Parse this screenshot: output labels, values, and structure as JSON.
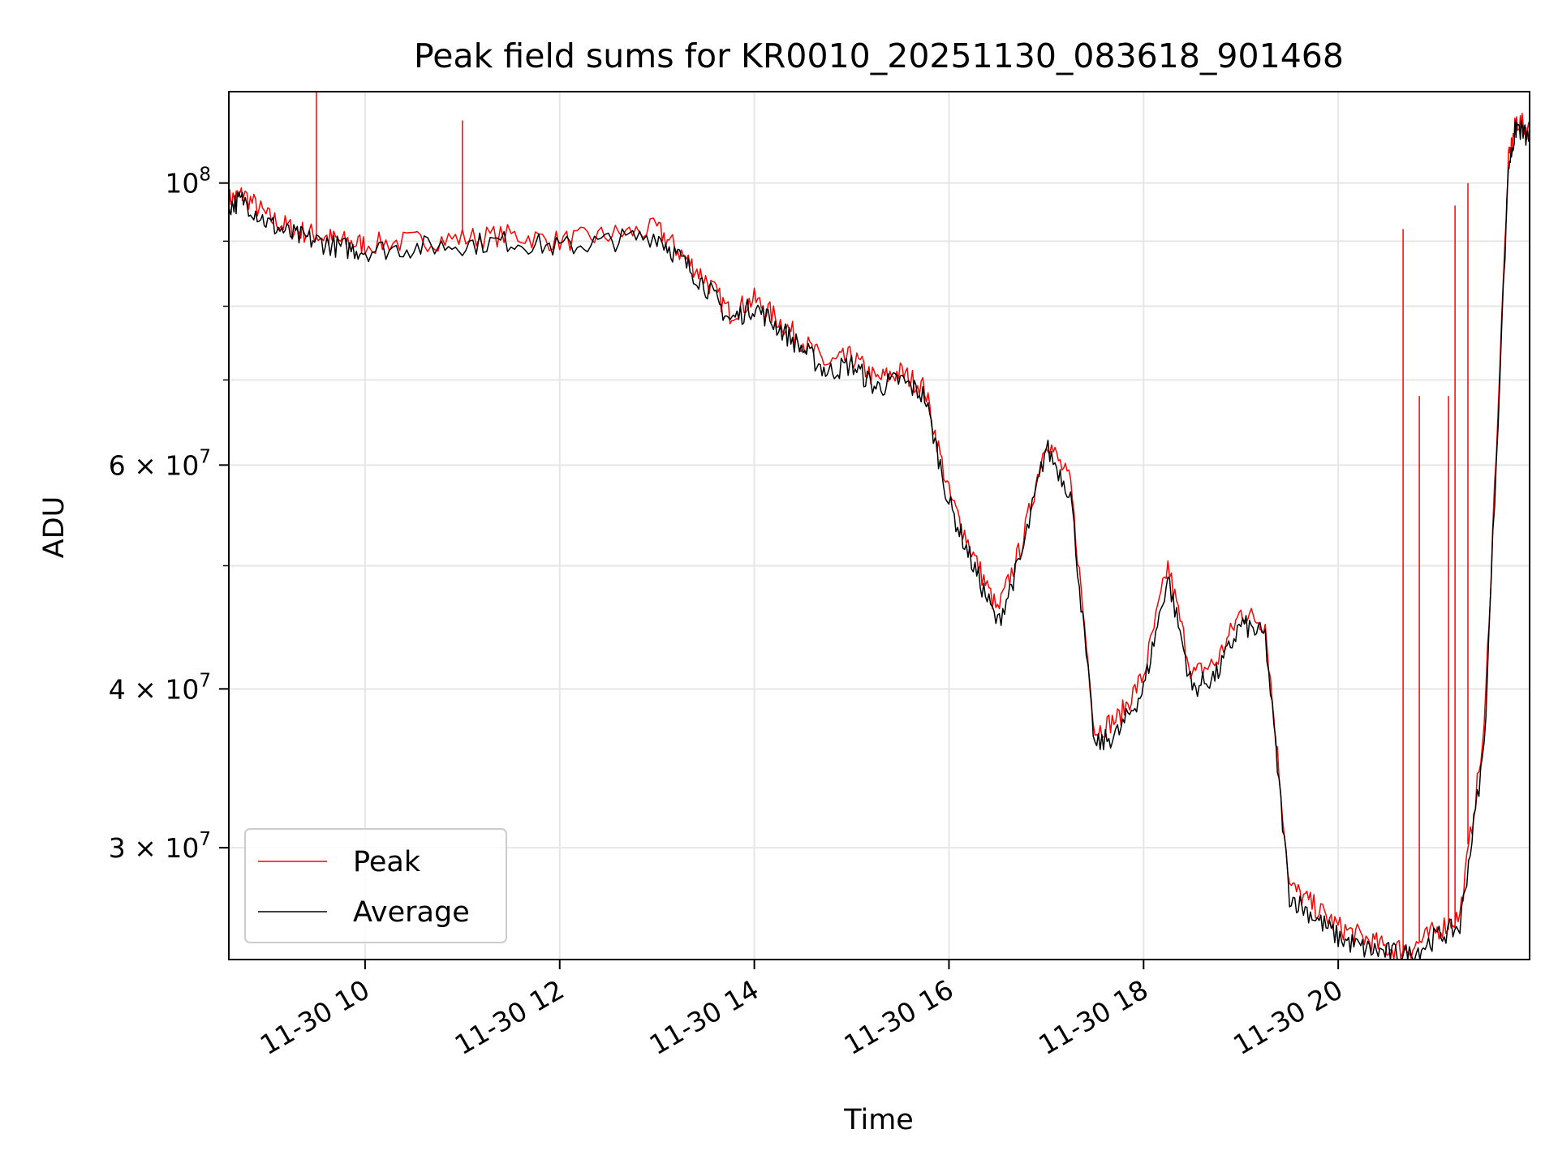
{
  "chart_data": {
    "type": "line",
    "title": "Peak field sums for KR0010_20251130_083618_901468",
    "xlabel": "Time",
    "ylabel": "ADU",
    "xlim": [
      "2025-11-30 08:36",
      "2025-11-30 21:58"
    ],
    "ylim": [
      24500000,
      118000000
    ],
    "yscale": "log",
    "grid": true,
    "legend_position": "lower left",
    "x_ticks": [
      {
        "value": "2025-11-30 10:00",
        "label": "11-30 10"
      },
      {
        "value": "2025-11-30 12:00",
        "label": "11-30 12"
      },
      {
        "value": "2025-11-30 14:00",
        "label": "11-30 14"
      },
      {
        "value": "2025-11-30 16:00",
        "label": "11-30 16"
      },
      {
        "value": "2025-11-30 18:00",
        "label": "11-30 18"
      },
      {
        "value": "2025-11-30 20:00",
        "label": "11-30 20"
      }
    ],
    "y_ticks": [
      {
        "value": 100000000,
        "base": "10",
        "exp": "8"
      },
      {
        "value": 60000000,
        "base": "6 × 10",
        "exp": "7"
      },
      {
        "value": 40000000,
        "base": "4 × 10",
        "exp": "7"
      },
      {
        "value": 30000000,
        "base": "3 × 10",
        "exp": "7"
      }
    ],
    "y_minor_ticks": [
      50000000,
      70000000,
      80000000,
      90000000
    ],
    "x": [
      "2025-11-30 08:36",
      "2025-11-30 08:45",
      "2025-11-30 09:00",
      "2025-11-30 09:15",
      "2025-11-30 09:30",
      "2025-11-30 09:45",
      "2025-11-30 10:00",
      "2025-11-30 10:30",
      "2025-11-30 11:00",
      "2025-11-30 11:30",
      "2025-11-30 12:00",
      "2025-11-30 12:30",
      "2025-11-30 13:00",
      "2025-11-30 13:15",
      "2025-11-30 13:30",
      "2025-11-30 13:45",
      "2025-11-30 14:00",
      "2025-11-30 14:15",
      "2025-11-30 14:30",
      "2025-11-30 14:45",
      "2025-11-30 15:00",
      "2025-11-30 15:15",
      "2025-11-30 15:30",
      "2025-11-30 15:45",
      "2025-11-30 16:00",
      "2025-11-30 16:15",
      "2025-11-30 16:30",
      "2025-11-30 16:45",
      "2025-11-30 17:00",
      "2025-11-30 17:15",
      "2025-11-30 17:30",
      "2025-11-30 17:45",
      "2025-11-30 18:00",
      "2025-11-30 18:15",
      "2025-11-30 18:30",
      "2025-11-30 18:45",
      "2025-11-30 19:00",
      "2025-11-30 19:15",
      "2025-11-30 19:30",
      "2025-11-30 19:45",
      "2025-11-30 20:00",
      "2025-11-30 20:15",
      "2025-11-30 20:30",
      "2025-11-30 20:45",
      "2025-11-30 21:00",
      "2025-11-30 21:15",
      "2025-11-30 21:30",
      "2025-11-30 21:45",
      "2025-11-30 21:50",
      "2025-11-30 21:58"
    ],
    "series": [
      {
        "name": "Peak",
        "color": "#ff0000",
        "values": [
          97000000,
          98000000,
          94000000,
          92000000,
          91000000,
          90000000,
          89500000,
          90000000,
          90500000,
          91000000,
          90000000,
          91000000,
          92000000,
          88000000,
          84000000,
          79000000,
          81000000,
          78000000,
          75000000,
          72000000,
          73000000,
          70000000,
          71000000,
          69000000,
          57000000,
          51000000,
          46000000,
          52000000,
          63000000,
          58000000,
          37000000,
          38000000,
          41000000,
          50000000,
          41000000,
          42000000,
          46000000,
          45000000,
          28000000,
          27000000,
          26000000,
          25500000,
          25000000,
          25000000,
          25800000,
          26500000,
          37000000,
          104000000,
          112000000,
          110000000
        ],
        "spikes": [
          {
            "x": "2025-11-30 09:30",
            "y": 118000000
          },
          {
            "x": "2025-11-30 11:00",
            "y": 112000000
          },
          {
            "x": "2025-11-30 20:40",
            "y": 92000000
          },
          {
            "x": "2025-11-30 20:50",
            "y": 68000000
          },
          {
            "x": "2025-11-30 21:08",
            "y": 68000000
          },
          {
            "x": "2025-11-30 21:12",
            "y": 96000000
          },
          {
            "x": "2025-11-30 21:20",
            "y": 100000000
          }
        ]
      },
      {
        "name": "Average",
        "color": "#000000",
        "values": [
          96000000,
          97000000,
          93000000,
          91000000,
          90000000,
          89000000,
          88500000,
          89000000,
          89500000,
          90000000,
          89000000,
          90000000,
          91000000,
          87000000,
          83000000,
          78000000,
          80000000,
          77000000,
          74000000,
          71000000,
          72000000,
          69000000,
          70000000,
          68000000,
          56000000,
          50000000,
          45000000,
          51000000,
          62000000,
          57000000,
          36000000,
          37000000,
          40000000,
          49000000,
          40000000,
          41000000,
          45000000,
          44000000,
          27500000,
          26500000,
          25500000,
          25000000,
          24800000,
          24700000,
          25500000,
          26000000,
          36000000,
          103000000,
          111000000,
          108000000
        ]
      }
    ]
  }
}
